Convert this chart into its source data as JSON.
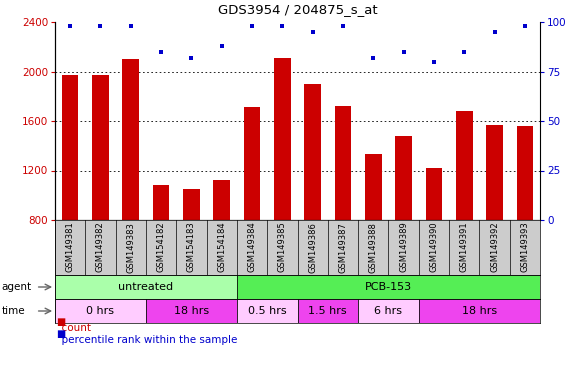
{
  "title": "GDS3954 / 204875_s_at",
  "samples": [
    "GSM149381",
    "GSM149382",
    "GSM149383",
    "GSM154182",
    "GSM154183",
    "GSM154184",
    "GSM149384",
    "GSM149385",
    "GSM149386",
    "GSM149387",
    "GSM149388",
    "GSM149389",
    "GSM149390",
    "GSM149391",
    "GSM149392",
    "GSM149393"
  ],
  "bar_values": [
    1970,
    1970,
    2100,
    1080,
    1050,
    1120,
    1710,
    2110,
    1900,
    1720,
    1330,
    1480,
    1220,
    1680,
    1570,
    1560
  ],
  "percentile_values": [
    98,
    98,
    98,
    85,
    82,
    88,
    98,
    98,
    95,
    98,
    82,
    85,
    80,
    85,
    95,
    98
  ],
  "bar_color": "#cc0000",
  "dot_color": "#0000cc",
  "ylim_left": [
    800,
    2400
  ],
  "ylim_right": [
    0,
    100
  ],
  "yticks_left": [
    800,
    1200,
    1600,
    2000,
    2400
  ],
  "yticks_right": [
    0,
    25,
    50,
    75,
    100
  ],
  "grid_values": [
    1200,
    1600,
    2000
  ],
  "agent_groups": [
    {
      "label": "untreated",
      "start": 0,
      "end": 6,
      "color": "#aaffaa"
    },
    {
      "label": "PCB-153",
      "start": 6,
      "end": 16,
      "color": "#55ee55"
    }
  ],
  "time_groups": [
    {
      "label": "0 hrs",
      "start": 0,
      "end": 3,
      "color": "#ffccff"
    },
    {
      "label": "18 hrs",
      "start": 3,
      "end": 6,
      "color": "#ee44ee"
    },
    {
      "label": "0.5 hrs",
      "start": 6,
      "end": 8,
      "color": "#ffccff"
    },
    {
      "label": "1.5 hrs",
      "start": 8,
      "end": 10,
      "color": "#ee44ee"
    },
    {
      "label": "6 hrs",
      "start": 10,
      "end": 12,
      "color": "#ffccff"
    },
    {
      "label": "18 hrs",
      "start": 12,
      "end": 16,
      "color": "#ee44ee"
    }
  ],
  "bar_width": 0.55,
  "background_color": "#ffffff",
  "sample_bg_color": "#cccccc"
}
